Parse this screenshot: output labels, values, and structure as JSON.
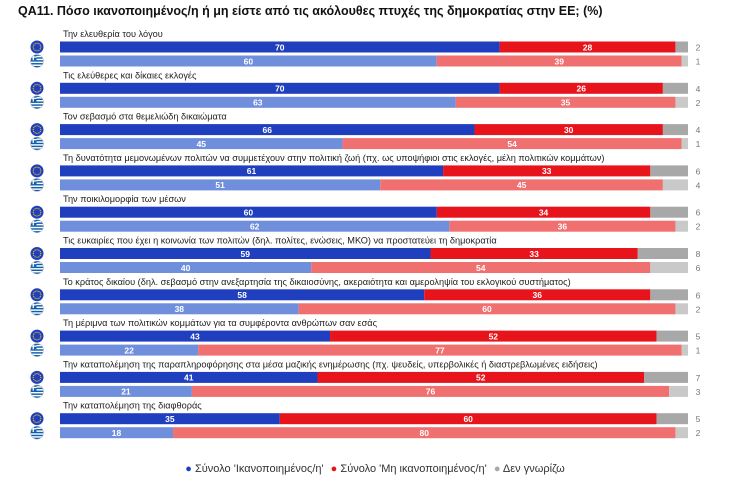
{
  "title": "QA11. Πόσο ικανοποιημένος/η ή μη είστε από τις ακόλουθες πτυχές της δημοκρατίας στην ΕΕ; (%)",
  "chart_data": {
    "type": "bar",
    "orientation": "horizontal",
    "stacked": true,
    "colors": {
      "eu_satisfied": "#1f3fbf",
      "gr_satisfied": "#6f8fdc",
      "eu_not_satisfied": "#e8141c",
      "gr_not_satisfied": "#f06f6f",
      "eu_dont_know": "#a8a8a8",
      "gr_dont_know": "#c9c9c9"
    },
    "rows": [
      "EU",
      "Greece"
    ],
    "legend": [
      {
        "label": "Σύνολο 'Ικανοποιημένος/η'",
        "color": "#1f3fbf"
      },
      {
        "label": "Σύνολο 'Μη ικανοποιημένος/η'",
        "color": "#e8141c"
      },
      {
        "label": "Δεν γνωρίζω",
        "color": "#a8a8a8"
      }
    ],
    "categories": [
      {
        "label": "Την ελευθερία του λόγου",
        "eu": [
          70,
          28,
          2
        ],
        "gr": [
          60,
          39,
          1
        ]
      },
      {
        "label": "Τις ελεύθερες και δίκαιες εκλογές",
        "eu": [
          70,
          26,
          4
        ],
        "gr": [
          63,
          35,
          2
        ]
      },
      {
        "label": "Τον σεβασμό στα θεμελιώδη δικαιώματα",
        "eu": [
          66,
          30,
          4
        ],
        "gr": [
          45,
          54,
          1
        ]
      },
      {
        "label": "Τη δυνατότητα μεμονωμένων πολιτών να συμμετέχουν στην πολιτική ζωή (πχ. ως υποψήφιοι στις εκλογές, μέλη πολιτικών κομμάτων)",
        "eu": [
          61,
          33,
          6
        ],
        "gr": [
          51,
          45,
          4
        ]
      },
      {
        "label": "Την ποικιλομορφία των μέσων",
        "eu": [
          60,
          34,
          6
        ],
        "gr": [
          62,
          36,
          2
        ]
      },
      {
        "label": "Τις ευκαιρίες που έχει η κοινωνία των πολιτών (δηλ. πολίτες, ενώσεις, ΜΚΟ) να προστατεύει τη δημοκρατία",
        "eu": [
          59,
          33,
          8
        ],
        "gr": [
          40,
          54,
          6
        ]
      },
      {
        "label": "Το κράτος δικαίου (δηλ. σεβασμό στην ανεξαρτησία της δικαιοσύνης,  ακεραιότητα και αμεροληψία του εκλογικού συστήματος)",
        "eu": [
          58,
          36,
          6
        ],
        "gr": [
          38,
          60,
          2
        ]
      },
      {
        "label": "Τη μέριμνα των πολιτικών κομμάτων για τα συμφέροντα ανθρώπων σαν εσάς",
        "eu": [
          43,
          52,
          5
        ],
        "gr": [
          22,
          77,
          1
        ]
      },
      {
        "label": "Την καταπολέμηση της παραπληροφόρησης στα μέσα μαζικής ενημέρωσης (πχ. ψευδείς, υπερβολικές ή διαστρεβλωμένες ειδήσεις)",
        "eu": [
          41,
          52,
          7
        ],
        "gr": [
          21,
          76,
          3
        ]
      },
      {
        "label": "Την καταπολέμηση της διαφθοράς",
        "eu": [
          35,
          60,
          5
        ],
        "gr": [
          18,
          80,
          2
        ]
      }
    ]
  }
}
